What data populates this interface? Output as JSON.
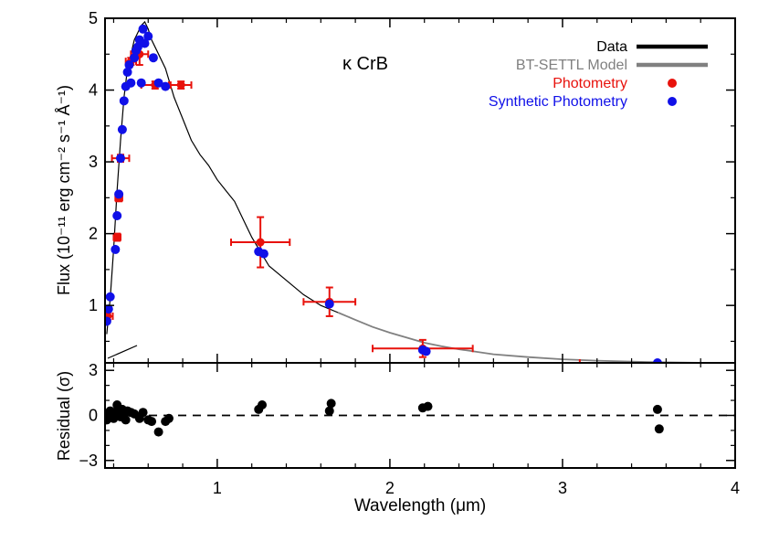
{
  "chart_data": [
    {
      "panel": "main",
      "type": "line",
      "title": "κ CrB",
      "xlabel": "",
      "ylabel": "Flux (10⁻¹¹ erg cm⁻² s⁻¹ Å⁻¹)",
      "xlim": [
        0.35,
        4.0
      ],
      "ylim": [
        0.2,
        5.0
      ],
      "x_ticks": [
        1,
        2,
        3,
        4
      ],
      "y_ticks": [
        1,
        2,
        3,
        4,
        5
      ],
      "legend_position": "top-right",
      "legend": [
        {
          "label": "Data",
          "color": "#000000",
          "symbol": "line"
        },
        {
          "label": "BT-SETTL Model",
          "color": "#808080",
          "symbol": "line"
        },
        {
          "label": "Photometry",
          "color": "#e8120c",
          "symbol": "dot"
        },
        {
          "label": "Synthetic Photometry",
          "color": "#1010e8",
          "symbol": "dot"
        }
      ],
      "series": [
        {
          "name": "Data",
          "color": "#000000",
          "x": [
            0.36,
            0.38,
            0.4,
            0.42,
            0.44,
            0.46,
            0.48,
            0.5,
            0.52,
            0.54,
            0.56,
            0.58,
            0.6,
            0.62,
            0.65,
            0.7,
            0.75,
            0.8,
            0.85,
            0.9,
            0.95,
            1.0,
            1.05,
            1.1,
            1.15,
            1.2,
            1.25,
            1.3,
            1.4,
            1.5,
            1.6,
            1.7
          ],
          "y": [
            0.6,
            1.1,
            1.8,
            2.6,
            3.3,
            3.9,
            4.3,
            4.5,
            4.7,
            4.8,
            4.9,
            4.95,
            4.85,
            4.7,
            4.55,
            4.3,
            3.9,
            3.6,
            3.3,
            3.1,
            2.95,
            2.75,
            2.6,
            2.45,
            2.2,
            1.95,
            1.75,
            1.55,
            1.35,
            1.15,
            1.0,
            0.9
          ]
        },
        {
          "name": "BT-SETTL Model",
          "color": "#808080",
          "x": [
            1.7,
            1.8,
            1.9,
            2.0,
            2.1,
            2.2,
            2.3,
            2.4,
            2.6,
            2.8,
            3.0,
            3.2,
            3.5,
            3.8,
            4.0
          ],
          "y": [
            0.9,
            0.8,
            0.7,
            0.62,
            0.55,
            0.48,
            0.43,
            0.39,
            0.32,
            0.28,
            0.25,
            0.23,
            0.21,
            0.2,
            0.2
          ]
        }
      ],
      "photometry": {
        "name": "Photometry",
        "color": "#e8120c",
        "points": [
          {
            "x": 0.365,
            "y": 0.85,
            "xerr": 0.03,
            "yerr": 0.05
          },
          {
            "x": 0.44,
            "y": 3.05,
            "xerr": 0.05,
            "yerr": 0.05
          },
          {
            "x": 0.55,
            "y": 4.5,
            "xerr": 0.05,
            "yerr": 0.15
          },
          {
            "x": 0.64,
            "y": 4.07,
            "xerr": 0.08,
            "yerr": 0.05
          },
          {
            "x": 0.79,
            "y": 4.07,
            "xerr": 0.06,
            "yerr": 0.05
          },
          {
            "x": 0.43,
            "y": 2.5,
            "xerr": 0.02,
            "yerr": 0.05
          },
          {
            "x": 0.42,
            "y": 1.95,
            "xerr": 0.02,
            "yerr": 0.05
          },
          {
            "x": 0.5,
            "y": 4.4,
            "xerr": 0.03,
            "yerr": 0.05
          },
          {
            "x": 1.25,
            "y": 1.88,
            "xerr": 0.17,
            "yerr": 0.35
          },
          {
            "x": 1.65,
            "y": 1.05,
            "xerr": 0.15,
            "yerr": 0.2
          },
          {
            "x": 2.19,
            "y": 0.4,
            "xerr": 0.29,
            "yerr": 0.12
          },
          {
            "x": 3.55,
            "y": 0.2,
            "xerr": 0.45,
            "yerr": 0.02
          }
        ]
      },
      "synthetic_photometry": {
        "name": "Synthetic Photometry",
        "color": "#1010e8",
        "x": [
          0.36,
          0.37,
          0.38,
          0.41,
          0.42,
          0.43,
          0.44,
          0.45,
          0.46,
          0.47,
          0.48,
          0.49,
          0.5,
          0.52,
          0.53,
          0.54,
          0.55,
          0.56,
          0.57,
          0.58,
          0.6,
          0.63,
          0.66,
          0.7,
          1.24,
          1.27,
          1.65,
          2.19,
          2.21,
          3.55
        ],
        "y": [
          0.78,
          0.95,
          1.12,
          1.78,
          2.25,
          2.55,
          3.05,
          3.45,
          3.85,
          4.05,
          4.25,
          4.35,
          4.1,
          4.45,
          4.55,
          4.6,
          4.7,
          4.1,
          4.85,
          4.65,
          4.75,
          4.45,
          4.1,
          4.05,
          1.75,
          1.72,
          1.02,
          0.38,
          0.36,
          0.2
        ]
      }
    },
    {
      "panel": "residual",
      "type": "scatter",
      "xlabel": "Wavelength (μm)",
      "ylabel": "Residual (σ)",
      "xlim": [
        0.35,
        4.0
      ],
      "ylim": [
        -3.5,
        3.5
      ],
      "x_ticks": [
        1,
        2,
        3,
        4
      ],
      "y_ticks": [
        -3,
        0,
        3
      ],
      "reference_line": 0,
      "series": [
        {
          "name": "",
          "color": "#000000",
          "x": [
            0.36,
            0.37,
            0.38,
            0.4,
            0.41,
            0.42,
            0.43,
            0.44,
            0.45,
            0.46,
            0.47,
            0.48,
            0.5,
            0.52,
            0.55,
            0.57,
            0.6,
            0.62,
            0.66,
            0.7,
            0.72,
            1.24,
            1.26,
            1.65,
            1.66,
            2.19,
            2.22,
            3.55,
            3.56
          ],
          "y": [
            -0.3,
            0.1,
            0.3,
            -0.2,
            0.2,
            0.7,
            0.3,
            -0.1,
            0.4,
            0.1,
            -0.3,
            0.3,
            0.2,
            0.1,
            -0.2,
            0.2,
            -0.3,
            -0.4,
            -1.1,
            -0.4,
            -0.2,
            0.4,
            0.7,
            0.3,
            0.8,
            0.5,
            0.6,
            0.4,
            -0.9
          ]
        }
      ]
    }
  ]
}
